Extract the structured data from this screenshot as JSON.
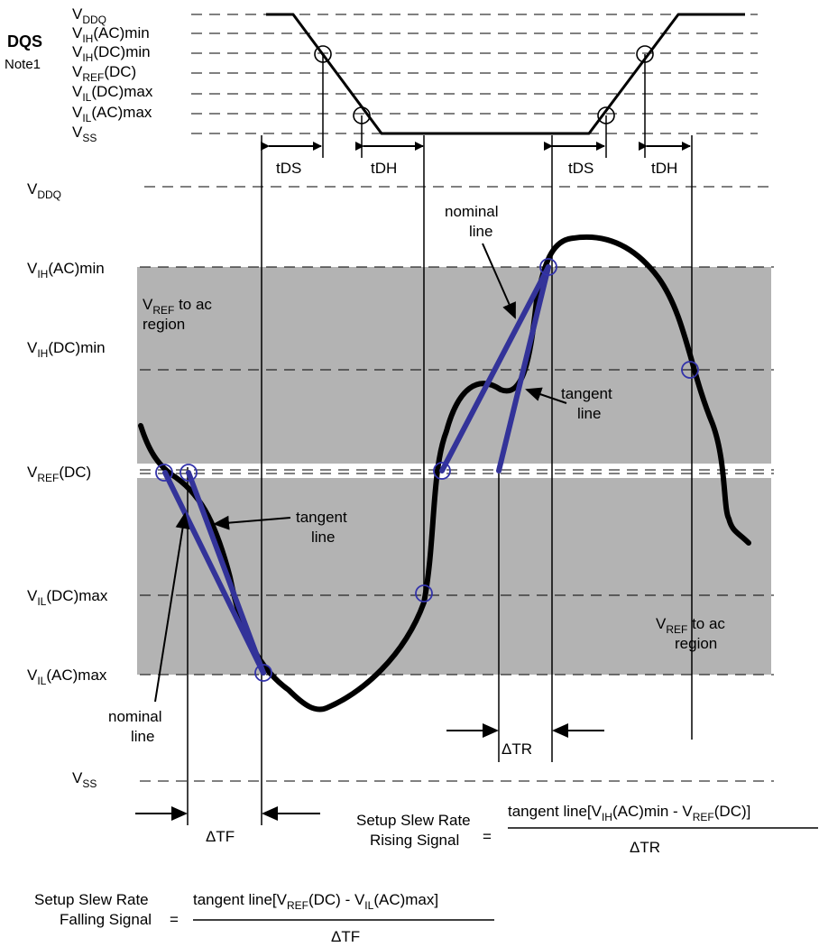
{
  "dqs": {
    "title": "DQS",
    "note": "Note1",
    "levels": [
      {
        "main": "V",
        "sub": "DDQ",
        "tail": ""
      },
      {
        "main": "V",
        "sub": "IH",
        "tail": "(AC)min"
      },
      {
        "main": "V",
        "sub": "IH",
        "tail": "(DC)min"
      },
      {
        "main": "V",
        "sub": "REF",
        "tail": "(DC)"
      },
      {
        "main": "V",
        "sub": "IL",
        "tail": "(DC)max"
      },
      {
        "main": "V",
        "sub": "IL",
        "tail": "(AC)max"
      },
      {
        "main": "V",
        "sub": "SS",
        "tail": ""
      }
    ],
    "timing": [
      "tDS",
      "tDH",
      "tDS",
      "tDH"
    ]
  },
  "levels": {
    "vddq": {
      "main": "V",
      "sub": "DDQ",
      "tail": ""
    },
    "vih_ac": {
      "main": "V",
      "sub": "IH",
      "tail": "(AC)min"
    },
    "vih_dc": {
      "main": "V",
      "sub": "IH",
      "tail": "(DC)min"
    },
    "vref_dc": {
      "main": "V",
      "sub": "REF",
      "tail": "(DC)"
    },
    "vil_dc": {
      "main": "V",
      "sub": "IL",
      "tail": "(DC)max"
    },
    "vil_ac": {
      "main": "V",
      "sub": "IL",
      "tail": "(AC)max"
    },
    "vss": {
      "main": "V",
      "sub": "SS",
      "tail": ""
    }
  },
  "regions": {
    "upper": {
      "main": "V",
      "sub": "REF",
      "tail": " to ac",
      "line2": "region"
    },
    "lower": {
      "main": "V",
      "sub": "REF",
      "tail": " to ac",
      "line2": "region"
    }
  },
  "annotations": {
    "nominal_line": [
      "nominal",
      "line"
    ],
    "tangent_line": [
      "tangent",
      "line"
    ]
  },
  "deltas": {
    "tr": "ΔTR",
    "tf": "ΔTF"
  },
  "formulas": {
    "rising": {
      "left1": "Setup Slew Rate",
      "left2": "Rising Signal",
      "eq": "=",
      "num_a": "tangent line[V",
      "num_b": "IH",
      "num_c": "(AC)min - V",
      "num_d": "REF",
      "num_e": "(DC)]",
      "den": "ΔTR"
    },
    "falling": {
      "left1": "Setup Slew Rate",
      "left2": "Falling Signal",
      "eq": "=",
      "num_a": "tangent line[V",
      "num_b": "REF",
      "num_c": "(DC) - V",
      "num_d": "IL",
      "num_e": "(AC)max]",
      "den": "ΔTF"
    }
  }
}
